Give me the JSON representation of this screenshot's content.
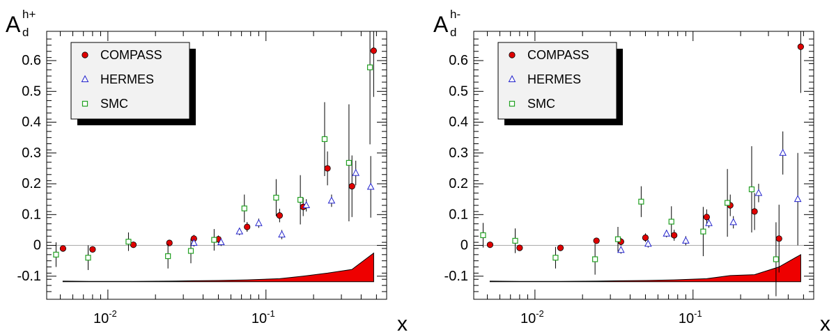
{
  "colors": {
    "compass": "#e00000",
    "hermes": "#2222cc",
    "smc": "#22a022",
    "band": "#ee0000"
  },
  "chart_data": [
    {
      "type": "scatter",
      "title_main": "A",
      "title_sub": "d",
      "title_sup": "h+",
      "xlabel": "x",
      "xscale": "log",
      "xlim": [
        0.0041,
        0.58
      ],
      "ylim": [
        -0.175,
        0.695
      ],
      "yticks": [
        -0.1,
        0,
        0.1,
        0.2,
        0.3,
        0.4,
        0.5,
        0.6
      ],
      "ytick_labels": [
        "-0.1",
        "0",
        "0.1",
        "0.2",
        "0.3",
        "0.4",
        "0.5",
        "0.6"
      ],
      "xtick_labels": [
        {
          "value": 0.01,
          "base": "10",
          "exp": "-2"
        },
        {
          "value": 0.1,
          "base": "10",
          "exp": "-1"
        }
      ],
      "legend_placement": "top-left",
      "series": [
        {
          "name": "COMPASS",
          "marker": "circle",
          "color_key": "compass",
          "points": [
            {
              "x": 0.0052,
              "y": -0.01,
              "err": 0.01
            },
            {
              "x": 0.008,
              "y": -0.013,
              "err": 0.01
            },
            {
              "x": 0.0145,
              "y": 0.002,
              "err": 0.01
            },
            {
              "x": 0.0245,
              "y": 0.008,
              "err": 0.01
            },
            {
              "x": 0.035,
              "y": 0.022,
              "err": 0.012
            },
            {
              "x": 0.05,
              "y": 0.02,
              "err": 0.012
            },
            {
              "x": 0.076,
              "y": 0.06,
              "err": 0.016
            },
            {
              "x": 0.122,
              "y": 0.097,
              "err": 0.022
            },
            {
              "x": 0.172,
              "y": 0.125,
              "err": 0.03
            },
            {
              "x": 0.245,
              "y": 0.25,
              "err": 0.055
            },
            {
              "x": 0.35,
              "y": 0.192,
              "err": 0.1
            },
            {
              "x": 0.48,
              "y": 0.632,
              "err": 0.15
            }
          ]
        },
        {
          "name": "HERMES",
          "marker": "triangle",
          "color_key": "hermes",
          "points": [
            {
              "x": 0.035,
              "y": 0.008,
              "err": 0.012
            },
            {
              "x": 0.052,
              "y": 0.01,
              "err": 0.012
            },
            {
              "x": 0.068,
              "y": 0.045,
              "err": 0.012
            },
            {
              "x": 0.09,
              "y": 0.072,
              "err": 0.015
            },
            {
              "x": 0.126,
              "y": 0.035,
              "err": 0.015
            },
            {
              "x": 0.18,
              "y": 0.13,
              "err": 0.02
            },
            {
              "x": 0.26,
              "y": 0.145,
              "err": 0.02
            },
            {
              "x": 0.37,
              "y": 0.235,
              "err": 0.04
            },
            {
              "x": 0.46,
              "y": 0.19,
              "err": 0.1
            }
          ]
        },
        {
          "name": "SMC",
          "marker": "square",
          "color_key": "smc",
          "points": [
            {
              "x": 0.0047,
              "y": -0.03,
              "err": 0.04
            },
            {
              "x": 0.0075,
              "y": -0.04,
              "err": 0.04
            },
            {
              "x": 0.0135,
              "y": 0.012,
              "err": 0.03
            },
            {
              "x": 0.024,
              "y": -0.035,
              "err": 0.04
            },
            {
              "x": 0.0335,
              "y": -0.018,
              "err": 0.04
            },
            {
              "x": 0.047,
              "y": 0.018,
              "err": 0.035
            },
            {
              "x": 0.073,
              "y": 0.12,
              "err": 0.045
            },
            {
              "x": 0.116,
              "y": 0.155,
              "err": 0.06
            },
            {
              "x": 0.165,
              "y": 0.148,
              "err": 0.08
            },
            {
              "x": 0.235,
              "y": 0.345,
              "err": 0.12
            },
            {
              "x": 0.335,
              "y": 0.268,
              "err": 0.19
            },
            {
              "x": 0.455,
              "y": 0.578,
              "err": 0.25
            }
          ]
        }
      ],
      "band": {
        "x": [
          0.0052,
          0.008,
          0.0145,
          0.0245,
          0.035,
          0.05,
          0.076,
          0.122,
          0.172,
          0.245,
          0.35,
          0.48
        ],
        "low": [
          -0.118,
          -0.118,
          -0.118,
          -0.118,
          -0.118,
          -0.118,
          -0.118,
          -0.118,
          -0.118,
          -0.118,
          -0.118,
          -0.118
        ],
        "high": [
          -0.116,
          -0.117,
          -0.117,
          -0.116,
          -0.115,
          -0.114,
          -0.112,
          -0.108,
          -0.1,
          -0.09,
          -0.078,
          -0.025
        ]
      }
    },
    {
      "type": "scatter",
      "title_main": "A",
      "title_sub": "d",
      "title_sup": "h-",
      "xlabel": "x",
      "xscale": "log",
      "xlim": [
        0.0041,
        0.58
      ],
      "ylim": [
        -0.175,
        0.695
      ],
      "yticks": [
        -0.1,
        0,
        0.1,
        0.2,
        0.3,
        0.4,
        0.5,
        0.6
      ],
      "ytick_labels": [
        "-0.1",
        "0",
        "0.1",
        "0.2",
        "0.3",
        "0.4",
        "0.5",
        "0.6"
      ],
      "xtick_labels": [
        {
          "value": 0.01,
          "base": "10",
          "exp": "-2"
        },
        {
          "value": 0.1,
          "base": "10",
          "exp": "-1"
        }
      ],
      "legend_placement": "top-left",
      "series": [
        {
          "name": "COMPASS",
          "marker": "circle",
          "color_key": "compass",
          "points": [
            {
              "x": 0.0052,
              "y": 0.002,
              "err": 0.01
            },
            {
              "x": 0.008,
              "y": -0.008,
              "err": 0.01
            },
            {
              "x": 0.0145,
              "y": -0.008,
              "err": 0.01
            },
            {
              "x": 0.0245,
              "y": 0.015,
              "err": 0.01
            },
            {
              "x": 0.035,
              "y": 0.012,
              "err": 0.012
            },
            {
              "x": 0.05,
              "y": 0.025,
              "err": 0.014
            },
            {
              "x": 0.076,
              "y": 0.033,
              "err": 0.018
            },
            {
              "x": 0.122,
              "y": 0.092,
              "err": 0.025
            },
            {
              "x": 0.172,
              "y": 0.13,
              "err": 0.035
            },
            {
              "x": 0.245,
              "y": 0.11,
              "err": 0.06
            },
            {
              "x": 0.35,
              "y": 0.022,
              "err": 0.11
            },
            {
              "x": 0.48,
              "y": 0.645,
              "err": 0.15
            }
          ]
        },
        {
          "name": "HERMES",
          "marker": "triangle",
          "color_key": "hermes",
          "points": [
            {
              "x": 0.035,
              "y": -0.015,
              "err": 0.012
            },
            {
              "x": 0.052,
              "y": 0.005,
              "err": 0.012
            },
            {
              "x": 0.068,
              "y": 0.038,
              "err": 0.012
            },
            {
              "x": 0.09,
              "y": 0.015,
              "err": 0.015
            },
            {
              "x": 0.126,
              "y": 0.072,
              "err": 0.015
            },
            {
              "x": 0.18,
              "y": 0.075,
              "err": 0.02
            },
            {
              "x": 0.26,
              "y": 0.17,
              "err": 0.03
            },
            {
              "x": 0.37,
              "y": 0.3,
              "err": 0.07
            },
            {
              "x": 0.46,
              "y": 0.15,
              "err": 0.15
            }
          ]
        },
        {
          "name": "SMC",
          "marker": "square",
          "color_key": "smc",
          "points": [
            {
              "x": 0.0047,
              "y": 0.033,
              "err": 0.04
            },
            {
              "x": 0.0075,
              "y": 0.015,
              "err": 0.04
            },
            {
              "x": 0.0135,
              "y": -0.04,
              "err": 0.035
            },
            {
              "x": 0.024,
              "y": -0.045,
              "err": 0.05
            },
            {
              "x": 0.0335,
              "y": 0.02,
              "err": 0.04
            },
            {
              "x": 0.047,
              "y": 0.142,
              "err": 0.05
            },
            {
              "x": 0.073,
              "y": 0.077,
              "err": 0.05
            },
            {
              "x": 0.116,
              "y": 0.045,
              "err": 0.08
            },
            {
              "x": 0.165,
              "y": 0.138,
              "err": 0.11
            },
            {
              "x": 0.235,
              "y": 0.182,
              "err": 0.14
            },
            {
              "x": 0.335,
              "y": -0.045,
              "err": 0.12
            }
          ]
        }
      ],
      "band": {
        "x": [
          0.0052,
          0.008,
          0.0145,
          0.0245,
          0.035,
          0.05,
          0.076,
          0.122,
          0.172,
          0.245,
          0.35,
          0.48
        ],
        "low": [
          -0.118,
          -0.118,
          -0.118,
          -0.118,
          -0.118,
          -0.118,
          -0.118,
          -0.118,
          -0.118,
          -0.118,
          -0.118,
          -0.118
        ],
        "high": [
          -0.116,
          -0.117,
          -0.117,
          -0.116,
          -0.115,
          -0.114,
          -0.112,
          -0.108,
          -0.098,
          -0.095,
          -0.07,
          -0.03
        ]
      }
    }
  ]
}
